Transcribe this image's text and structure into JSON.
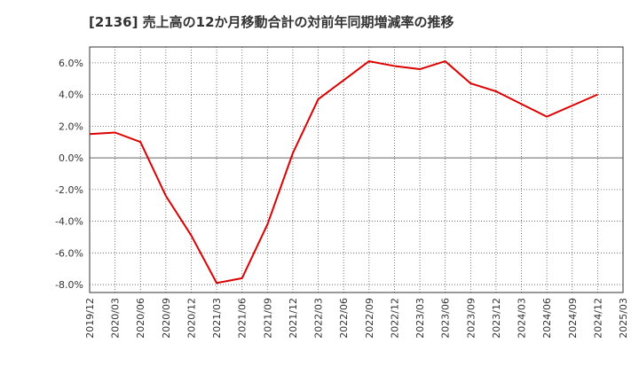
{
  "chart_data": {
    "type": "line",
    "title": "[2136]  売上高の12か月移動合計の対前年同期増減率の推移",
    "xlabel": "",
    "ylabel": "",
    "ylim": [
      -8.5,
      7.0
    ],
    "yticks": [
      6,
      4,
      2,
      0,
      -2,
      -4,
      -6,
      -8
    ],
    "ytick_labels": [
      "6.0%",
      "4.0%",
      "2.0%",
      "0.0%",
      "-2.0%",
      "-4.0%",
      "-6.0%",
      "-8.0%"
    ],
    "x_tick_labels": [
      "2019/12",
      "2020/03",
      "2020/06",
      "2020/09",
      "2020/12",
      "2021/03",
      "2021/06",
      "2021/09",
      "2021/12",
      "2022/03",
      "2022/06",
      "2022/09",
      "2022/12",
      "2023/03",
      "2023/06",
      "2023/09",
      "2023/12",
      "2024/03",
      "2024/06",
      "2024/09",
      "2024/12",
      "2025/03"
    ],
    "grid": true,
    "series": [
      {
        "name": "対前年同期増減率",
        "color": "#dd0000",
        "x": [
          "2019/12",
          "2020/03",
          "2020/06",
          "2020/09",
          "2020/12",
          "2021/03",
          "2021/06",
          "2021/09",
          "2021/12",
          "2022/03",
          "2022/06",
          "2022/09",
          "2022/12",
          "2023/03",
          "2023/06",
          "2023/09",
          "2023/12",
          "2024/03",
          "2024/06",
          "2024/09",
          "2024/12"
        ],
        "values": [
          1.5,
          1.6,
          1.0,
          -2.4,
          -4.9,
          -7.9,
          -7.6,
          -4.2,
          0.3,
          3.7,
          4.9,
          6.1,
          5.8,
          5.6,
          6.1,
          4.7,
          4.2,
          3.4,
          2.6,
          3.3,
          4.0
        ]
      }
    ]
  }
}
